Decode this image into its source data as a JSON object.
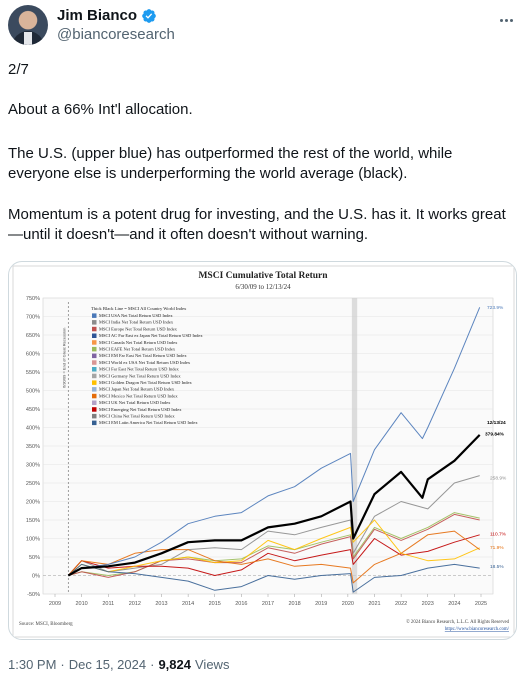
{
  "author": {
    "name": "Jim Bianco",
    "handle": "@biancoresearch"
  },
  "tweet": {
    "p1": "2/7",
    "p2": "About a 66% Int'l allocation.",
    "p3": "The U.S. (upper blue) has outperformed the rest of the world, while everyone else is underperforming the world average (black).",
    "p4": "Momentum is a potent drug for investing, and the U.S. has it. It works great—until it doesn't—and it often doesn't without warning."
  },
  "footer": {
    "time": "1:30 PM",
    "sep1": "·",
    "date": "Dec 15, 2024",
    "sep2": "·",
    "views_count": "9,824",
    "views_label": "Views"
  },
  "chart_data": {
    "type": "line",
    "title": "MSCI Cumulative Total Return",
    "subtitle": "6/30/09 to 12/13/24",
    "y_ticks": [
      "750%",
      "700%",
      "650%",
      "600%",
      "550%",
      "500%",
      "450%",
      "400%",
      "350%",
      "300%",
      "250%",
      "200%",
      "150%",
      "100%",
      "50%",
      "0%",
      "-50%"
    ],
    "ylim": [
      -50,
      750
    ],
    "x_ticks": [
      "2009",
      "2010",
      "2011",
      "2012",
      "2013",
      "2014",
      "2015",
      "2016",
      "2017",
      "2018",
      "2019",
      "2020",
      "2021",
      "2022",
      "2023",
      "2024",
      "2025"
    ],
    "vline_label": "6/30/09 = End of Great Recession",
    "legend_title": "Thick Black Line = MSCI All Country World Index",
    "legend": [
      {
        "label": "MSCI USA Net Total Return USD Index",
        "color": "#4a78b8"
      },
      {
        "label": "MSCI India Net Total Return USD Index",
        "color": "#8c8c8c"
      },
      {
        "label": "MSCI Europe Net Total Return USD Index",
        "color": "#c0504d"
      },
      {
        "label": "MSCI AC Far East ex Japan Net Total Return USD Index",
        "color": "#2e5597"
      },
      {
        "label": "MSCI Canada Net Total Return USD Index",
        "color": "#f79646"
      },
      {
        "label": "MSCI EAFE Net Total Return USD Index",
        "color": "#9bbb59"
      },
      {
        "label": "MSCI EM Far East Net Total Return USD Index",
        "color": "#8064a2"
      },
      {
        "label": "MSCI World ex USA Net Total Return USD Index",
        "color": "#d99694"
      },
      {
        "label": "MSCI Far East Net Total Return USD Index",
        "color": "#4bacc6"
      },
      {
        "label": "MSCI Germany Net Total Return USD Index",
        "color": "#a5a5a5"
      },
      {
        "label": "MSCI Golden Dragon Net Total Return USD Index",
        "color": "#ffc000"
      },
      {
        "label": "MSCI Japan Net Total Return USD Index",
        "color": "#95b3d7"
      },
      {
        "label": "MSCI Mexico Net Total Return USD Index",
        "color": "#e46c0a"
      },
      {
        "label": "MSCI UK Net Total Return USD Index",
        "color": "#b2a1c7"
      },
      {
        "label": "MSCI Emerging Net Total Return USD Index",
        "color": "#c00000"
      },
      {
        "label": "MSCI China Net Total Return USD Index",
        "color": "#7f7f7f"
      },
      {
        "label": "MSCI EM Latin America Net Total Return USD Index",
        "color": "#366092"
      }
    ],
    "series": [
      {
        "name": "MSCI USA Net Total Return USD Index",
        "color": "#4a78b8",
        "x": [
          2009.5,
          2010,
          2011,
          2012,
          2013,
          2014,
          2015,
          2016,
          2017,
          2018,
          2019,
          2020.1,
          2020.2,
          2021,
          2022,
          2022.8,
          2023,
          2024,
          2024.95
        ],
        "y": [
          0,
          20,
          30,
          50,
          90,
          140,
          160,
          170,
          215,
          240,
          290,
          330,
          200,
          340,
          440,
          370,
          400,
          560,
          725
        ]
      },
      {
        "name": "MSCI All Country World Index",
        "color": "#000000",
        "x": [
          2009.5,
          2010,
          2011,
          2012,
          2013,
          2014,
          2015,
          2016,
          2017,
          2018,
          2019,
          2020.1,
          2020.2,
          2021,
          2022,
          2022.8,
          2023,
          2024,
          2024.95
        ],
        "y": [
          0,
          20,
          25,
          35,
          60,
          90,
          95,
          95,
          130,
          140,
          160,
          200,
          100,
          220,
          280,
          210,
          260,
          310,
          380
        ]
      },
      {
        "name": "MSCI India Net Total Return USD Index",
        "color": "#8c8c8c",
        "x": [
          2009.5,
          2010,
          2011,
          2012,
          2013,
          2014,
          2015,
          2016,
          2017,
          2018,
          2019,
          2020.1,
          2020.2,
          2021,
          2022,
          2023,
          2024,
          2024.95
        ],
        "y": [
          0,
          40,
          10,
          20,
          30,
          70,
          75,
          70,
          120,
          110,
          130,
          150,
          60,
          160,
          200,
          180,
          250,
          270
        ]
      },
      {
        "name": "MSCI EAFE Net Total Return USD Index",
        "color": "#9bbb59",
        "x": [
          2009.5,
          2010,
          2011,
          2012,
          2013,
          2014,
          2015,
          2016,
          2017,
          2018,
          2019,
          2020.1,
          2020.2,
          2021,
          2022,
          2023,
          2024,
          2024.95
        ],
        "y": [
          0,
          10,
          0,
          10,
          40,
          50,
          40,
          45,
          80,
          70,
          90,
          110,
          50,
          130,
          100,
          130,
          170,
          155
        ]
      },
      {
        "name": "MSCI Europe Net Total Return USD Index",
        "color": "#c0504d",
        "x": [
          2009.5,
          2010,
          2011,
          2012,
          2013,
          2014,
          2015,
          2016,
          2017,
          2018,
          2019,
          2020.1,
          2020.2,
          2021,
          2022,
          2023,
          2024,
          2024.95
        ],
        "y": [
          0,
          10,
          -5,
          10,
          40,
          45,
          35,
          35,
          75,
          60,
          85,
          105,
          45,
          125,
          95,
          125,
          165,
          150
        ]
      },
      {
        "name": "MSCI Emerging Net Total Return USD Index",
        "color": "#c00000",
        "x": [
          2009.5,
          2010,
          2011,
          2012,
          2013,
          2014,
          2015,
          2016,
          2017,
          2018,
          2019,
          2020.1,
          2020.2,
          2021,
          2022,
          2023,
          2024,
          2024.95
        ],
        "y": [
          0,
          40,
          20,
          25,
          25,
          20,
          0,
          15,
          60,
          40,
          55,
          70,
          30,
          100,
          55,
          65,
          90,
          110
        ]
      },
      {
        "name": "MSCI Golden Dragon Net Total Return USD Index",
        "color": "#ffc000",
        "x": [
          2009.5,
          2010,
          2011,
          2012,
          2013,
          2014,
          2015,
          2016,
          2017,
          2018,
          2019,
          2020.1,
          2020.2,
          2021,
          2022,
          2023,
          2024,
          2024.95
        ],
        "y": [
          0,
          30,
          10,
          25,
          40,
          50,
          35,
          40,
          95,
          70,
          100,
          130,
          90,
          150,
          60,
          40,
          45,
          75
        ]
      },
      {
        "name": "MSCI Mexico Net Total Return USD Index",
        "color": "#e46c0a",
        "x": [
          2009.5,
          2010,
          2011,
          2012,
          2013,
          2014,
          2015,
          2016,
          2017,
          2018,
          2019,
          2020.1,
          2020.2,
          2021,
          2022,
          2023,
          2024,
          2024.95
        ],
        "y": [
          0,
          40,
          30,
          60,
          70,
          70,
          40,
          30,
          45,
          25,
          30,
          20,
          -20,
          30,
          60,
          110,
          120,
          70
        ]
      },
      {
        "name": "MSCI EM Latin America Net Total Return USD Index",
        "color": "#366092",
        "x": [
          2009.5,
          2010,
          2011,
          2012,
          2013,
          2014,
          2015,
          2016,
          2017,
          2018,
          2019,
          2020.1,
          2020.2,
          2021,
          2022,
          2023,
          2024,
          2024.95
        ],
        "y": [
          0,
          30,
          10,
          5,
          -5,
          -15,
          -40,
          -30,
          0,
          -10,
          0,
          5,
          -45,
          -5,
          0,
          20,
          30,
          20
        ]
      }
    ],
    "end_labels": [
      "723.9%",
      "12/13/24",
      "379.84%",
      "258.9%",
      "110.7%",
      "71.9%",
      "18.5%"
    ],
    "source": "Source: MSCI, Bloomberg",
    "copyright": "© 2024 Bianco Research, L.L.C. All Rights Reserved",
    "url": "https://www.biancoresearch.com/"
  }
}
